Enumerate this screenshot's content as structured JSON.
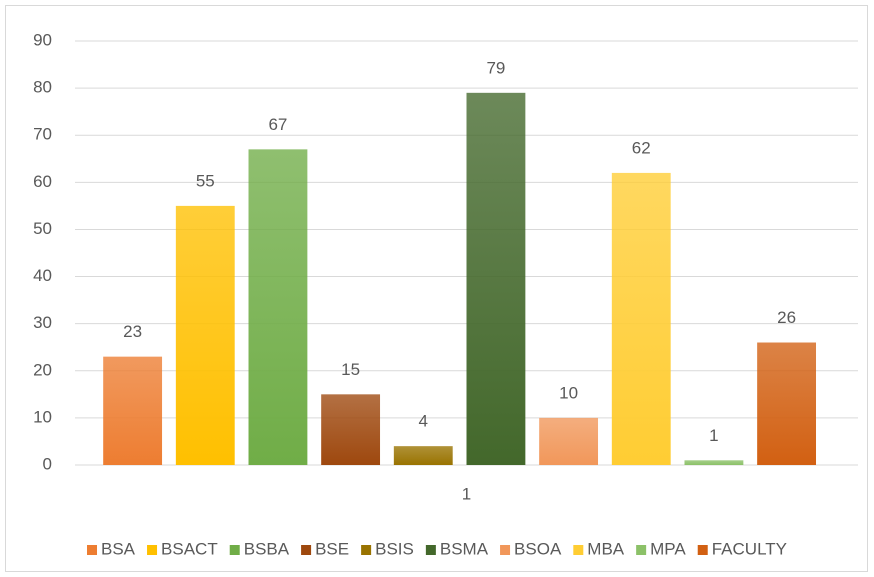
{
  "chart_data": {
    "type": "bar",
    "categories": [
      "1"
    ],
    "series": [
      {
        "name": "BSA",
        "color": "#ED7D31",
        "values": [
          23
        ]
      },
      {
        "name": "BSACT",
        "color": "#FFC000",
        "values": [
          55
        ]
      },
      {
        "name": "BSBA",
        "color": "#70AD47",
        "values": [
          67
        ]
      },
      {
        "name": "BSE",
        "color": "#9E480E",
        "values": [
          15
        ]
      },
      {
        "name": "BSIS",
        "color": "#997300",
        "values": [
          4
        ]
      },
      {
        "name": "BSMA",
        "color": "#43682B",
        "values": [
          79
        ]
      },
      {
        "name": "BSOA",
        "color": "#F1975A",
        "values": [
          10
        ]
      },
      {
        "name": "MBA",
        "color": "#FFCD33",
        "values": [
          62
        ]
      },
      {
        "name": "MPA",
        "color": "#8CC168",
        "values": [
          1
        ]
      },
      {
        "name": "FACULTY",
        "color": "#D26012",
        "values": [
          26
        ]
      }
    ],
    "ylim": [
      0,
      90
    ],
    "yticks": [
      0,
      10,
      20,
      30,
      40,
      50,
      60,
      70,
      80,
      90
    ],
    "grid": true,
    "legend": "bottom"
  }
}
